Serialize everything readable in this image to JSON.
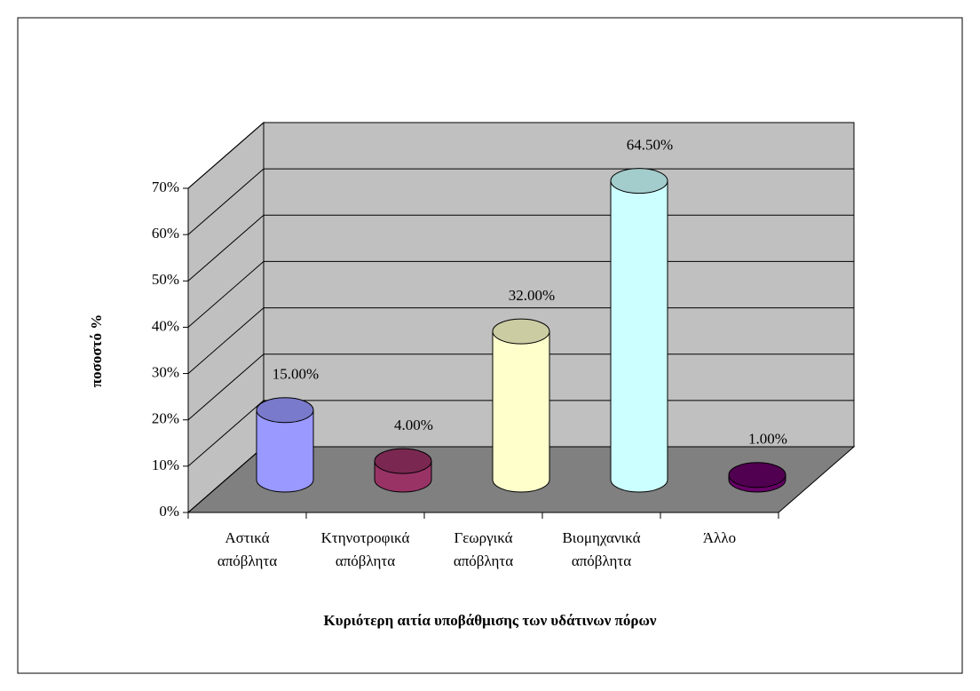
{
  "chart_data": {
    "type": "bar3d",
    "x_label": "Κυριότερη αιτία υποβάθμισης των υδάτινων πόρων",
    "y_label": "ποσοστό %",
    "categories": [
      "Αστικά\nαπόβλητα",
      "Κτηνοτροφικά\nαπόβλητα",
      "Γεωργικά\nαπόβλητα",
      "Βιομηχανικά\nαπόβλητα",
      "Άλλο"
    ],
    "values": [
      15,
      4,
      32,
      64.5,
      1
    ],
    "value_labels": [
      "15.00%",
      "4.00%",
      "32.00%",
      "64.50%",
      "1.00%"
    ],
    "colors": [
      "#9999ff",
      "#993366",
      "#ffffcc",
      "#ccffff",
      "#660066"
    ],
    "ylim": [
      0,
      70
    ],
    "yticks": [
      {
        "value": 0,
        "label": "0%"
      },
      {
        "value": 10,
        "label": "10%"
      },
      {
        "value": 20,
        "label": "20%"
      },
      {
        "value": 30,
        "label": "30%"
      },
      {
        "value": 40,
        "label": "40%"
      },
      {
        "value": 50,
        "label": "50%"
      },
      {
        "value": 60,
        "label": "60%"
      },
      {
        "value": 70,
        "label": "70%"
      }
    ],
    "grid": true
  }
}
